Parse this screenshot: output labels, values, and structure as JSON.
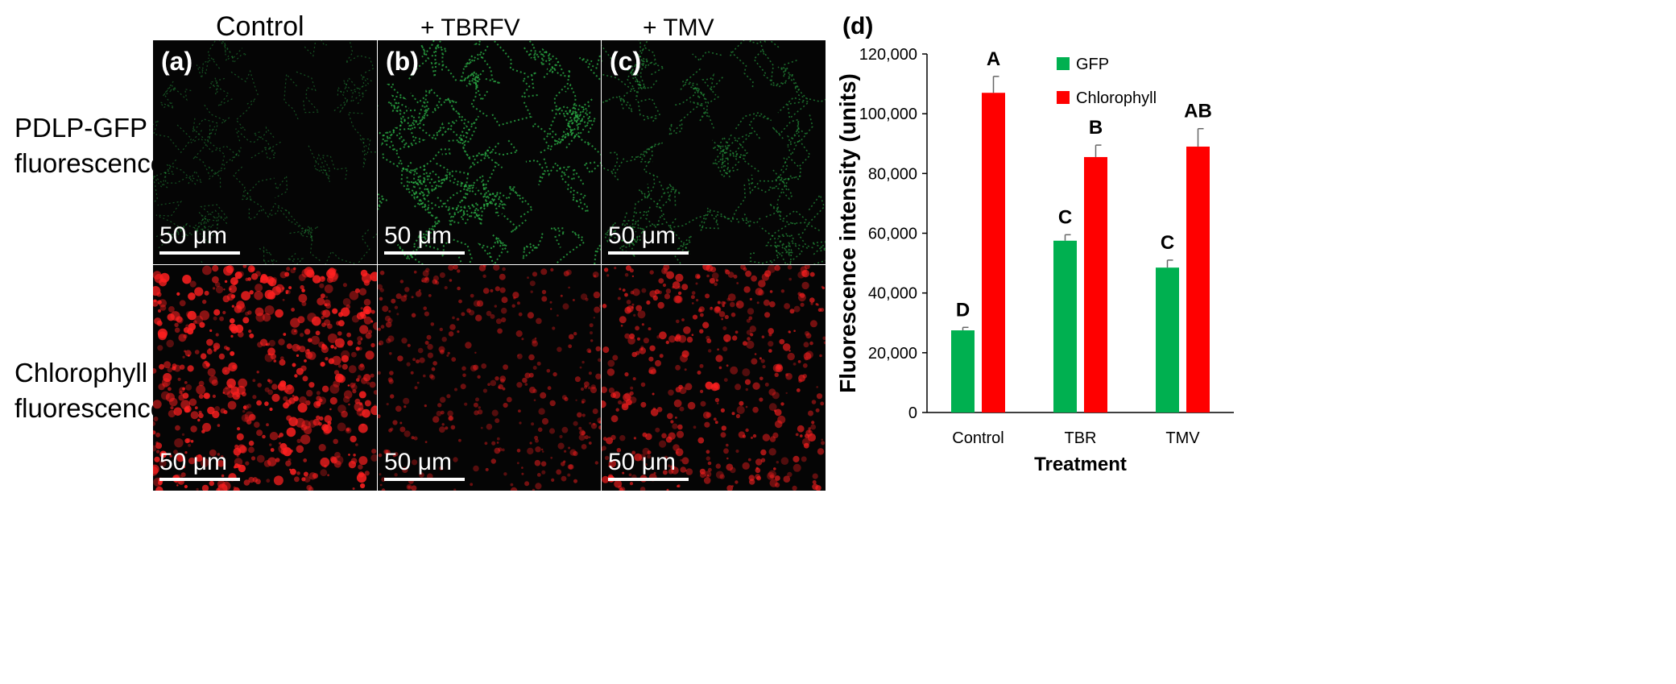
{
  "figure": {
    "columns": [
      "Control",
      "+ TBRFV",
      "+ TMV"
    ],
    "rows": [
      {
        "line1": "PDLP-GFP",
        "line2": "fluorescence"
      },
      {
        "line1": "Chlorophyll",
        "line2": "fluorescence"
      }
    ],
    "panels": [
      {
        "letter": "(a)",
        "scalebar": "50 μm",
        "channel": "gfp",
        "intensity": "low"
      },
      {
        "letter": "(b)",
        "scalebar": "50 μm",
        "channel": "gfp",
        "intensity": "high"
      },
      {
        "letter": "(c)",
        "scalebar": "50 μm",
        "channel": "gfp",
        "intensity": "medium"
      },
      {
        "letter": "",
        "scalebar": "50 μm",
        "channel": "chlorophyll",
        "intensity": "high"
      },
      {
        "letter": "",
        "scalebar": "50 μm",
        "channel": "chlorophyll",
        "intensity": "low"
      },
      {
        "letter": "",
        "scalebar": "50 μm",
        "channel": "chlorophyll",
        "intensity": "medium"
      }
    ],
    "colors": {
      "gfp": "#2db84a",
      "chlorophyll": "#ff2020",
      "background": "#050505"
    }
  },
  "chart_data": {
    "type": "bar",
    "panel_label": "(d)",
    "title": "",
    "xlabel": "Treatment",
    "ylabel": "Fluorescence intensity (units)",
    "categories": [
      "Control",
      "TBR",
      "TMV"
    ],
    "ylim": [
      0,
      120000
    ],
    "yticks": [
      0,
      20000,
      40000,
      60000,
      80000,
      100000,
      120000
    ],
    "ytick_labels": [
      "0",
      "20,000",
      "40,000",
      "60,000",
      "80,000",
      "100,000",
      "120,000"
    ],
    "series": [
      {
        "name": "GFP",
        "color": "#00b050",
        "values": [
          27500,
          57500,
          48500
        ],
        "errors": [
          1000,
          2000,
          2500
        ],
        "letters": [
          "D",
          "C",
          "C"
        ]
      },
      {
        "name": "Chlorophyll",
        "color": "#ff0000",
        "values": [
          107000,
          85500,
          89000
        ],
        "errors": [
          5500,
          4000,
          6000
        ],
        "letters": [
          "A",
          "B",
          "AB"
        ]
      }
    ],
    "legend_position": "top-right",
    "grid": false
  }
}
